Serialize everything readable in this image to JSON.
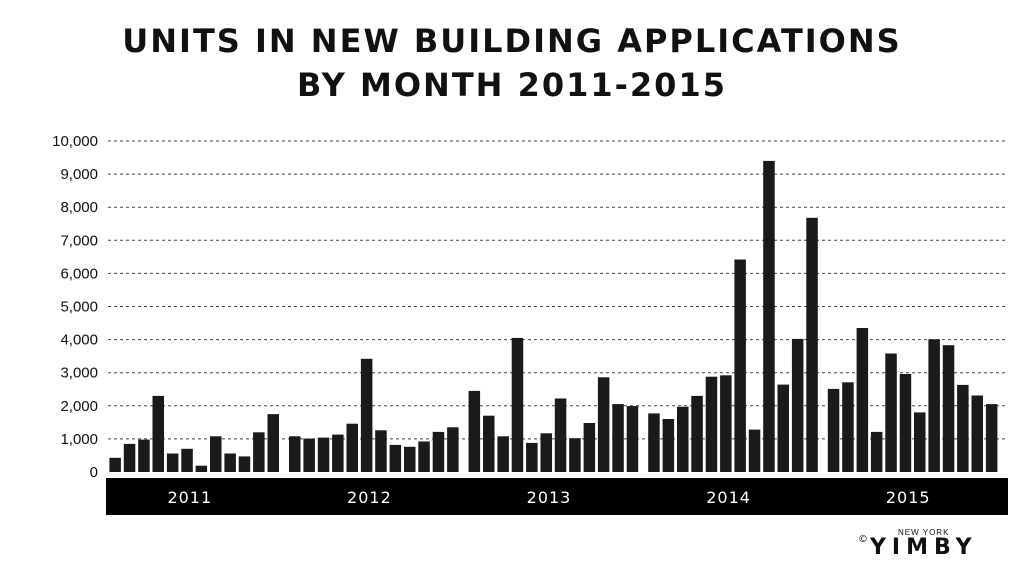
{
  "chart_data": {
    "type": "bar",
    "title_line1": "UNITS IN NEW BUILDING APPLICATIONS",
    "title_line2": "BY MONTH 2011-2015",
    "xlabel": "",
    "ylabel": "",
    "ylim": [
      0,
      10000
    ],
    "yticks": [
      "0",
      "1,000",
      "2,000",
      "3,000",
      "4,000",
      "5,000",
      "6,000",
      "7,000",
      "8,000",
      "9,000",
      "10,000"
    ],
    "grid": "dashed horizontal",
    "bar_color": "#1a1a1a",
    "year_band_color": "#000000",
    "series": [
      {
        "year": "2011",
        "values": [
          430,
          850,
          980,
          2300,
          560,
          700,
          190,
          1080,
          560,
          470,
          1200,
          1750
        ]
      },
      {
        "year": "2012",
        "values": [
          1080,
          1010,
          1040,
          1130,
          1460,
          3420,
          1260,
          820,
          760,
          920,
          1210,
          1350
        ]
      },
      {
        "year": "2013",
        "values": [
          2450,
          1700,
          1080,
          4050,
          880,
          1170,
          2220,
          1020,
          1480,
          2860,
          2050,
          1990
        ]
      },
      {
        "year": "2014",
        "values": [
          1770,
          1600,
          1970,
          2300,
          2880,
          2920,
          6420,
          1280,
          9400,
          2640,
          4020,
          7680
        ]
      },
      {
        "year": "2015",
        "values": [
          2510,
          2710,
          4350,
          1210,
          3580,
          2960,
          1800,
          4010,
          3830,
          2630,
          2310,
          2050
        ]
      }
    ]
  },
  "logo": {
    "top_text": "NEW YORK",
    "copyright": "©",
    "main_text": "YIMBY"
  }
}
